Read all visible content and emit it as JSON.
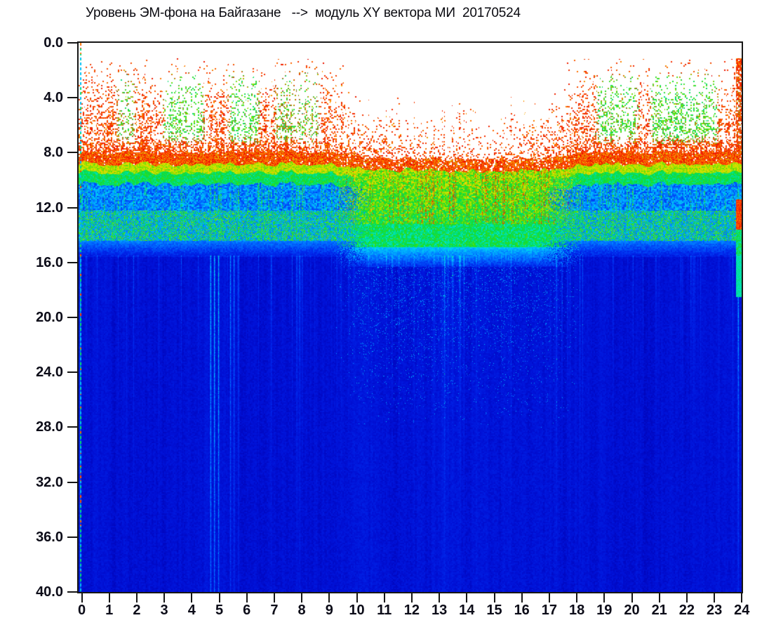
{
  "window": {
    "background": "#ffffff"
  },
  "chart": {
    "title": "Уровень ЭМ-фона на Байгазане   -->  модуль XY вектора МИ  20170524"
  },
  "chart_data": {
    "type": "heatmap",
    "title": "Уровень ЭМ-фона на Байгазане   -->  модуль XY вектора МИ  20170524",
    "station": "Байгазан",
    "date": "20170524",
    "x": {
      "range": [
        0,
        24
      ],
      "ticks": [
        "0",
        "1",
        "2",
        "3",
        "4",
        "5",
        "6",
        "7",
        "8",
        "9",
        "10",
        "11",
        "12",
        "13",
        "14",
        "15",
        "16",
        "17",
        "18",
        "19",
        "20",
        "21",
        "22",
        "23",
        "24"
      ]
    },
    "y": {
      "range_top_to_bottom": [
        0,
        40
      ],
      "tick_step": 4,
      "ticks": [
        "0.0",
        "4.0",
        "8.0",
        "12.0",
        "16.0",
        "20.0",
        "24.0",
        "28.0",
        "32.0",
        "36.0",
        "40.0"
      ]
    },
    "legend": "none",
    "grid": "off",
    "colormap": {
      "white_threshold": 0.048,
      "stops": [
        [
          0.05,
          0,
          0,
          178
        ],
        [
          0.12,
          0,
          18,
          216
        ],
        [
          0.2,
          0,
          44,
          238
        ],
        [
          0.3,
          0,
          104,
          255
        ],
        [
          0.4,
          0,
          174,
          255
        ],
        [
          0.48,
          0,
          226,
          233
        ],
        [
          0.55,
          0,
          224,
          120
        ],
        [
          0.61,
          24,
          220,
          40
        ],
        [
          0.68,
          132,
          226,
          0
        ],
        [
          0.75,
          232,
          226,
          0
        ],
        [
          0.82,
          255,
          148,
          0
        ],
        [
          0.88,
          255,
          58,
          0
        ],
        [
          1.0,
          222,
          0,
          0
        ]
      ]
    },
    "structure": {
      "comment": "EM-background daily spectrogram: strong low-frequency activity (red speckle with green cores) 0..8 units during local night/morning (0-9.5h) and evening (17.5-24h); quiet white gap 10-17h; dense red boundary band near 8; yellow-green field 9-14.5 in quiet hours; cyan mottle and green-speckle band 12-14.5 in active hours; deep blue above 15.5 with vertical cyan streaks",
      "quiet_ramp_hours": [
        9.1,
        10.7,
        16.6,
        18.4
      ],
      "band": {
        "dense_top": 7.95,
        "dense_height": 0.75,
        "quiet_sag": 0.5
      },
      "green_windows": [
        [
          1.3,
          2.15,
          0.8
        ],
        [
          2.95,
          4.65,
          1.0
        ],
        [
          5.35,
          6.65,
          1.0
        ],
        [
          7.05,
          8.8,
          0.75
        ],
        [
          18.65,
          20.35,
          0.95
        ],
        [
          20.6,
          23.25,
          1.0
        ],
        [
          23.78,
          24.0,
          0.9
        ]
      ],
      "quiet_top_clusters": [
        [
          10.95,
          0.5,
          0.3
        ],
        [
          16.95,
          0.55,
          0.5
        ],
        [
          12.45,
          0.3,
          0.12
        ],
        [
          14.2,
          0.3,
          0.08
        ],
        [
          15.5,
          0.3,
          0.1
        ]
      ],
      "streaks": [
        [
          0.07,
          0.9,
          40
        ],
        [
          4.78,
          0.9,
          40
        ],
        [
          4.92,
          1.0,
          40
        ],
        [
          5.07,
          0.95,
          40
        ],
        [
          5.5,
          0.7,
          24
        ],
        [
          5.63,
          0.6,
          20
        ],
        [
          5.79,
          0.55,
          18
        ],
        [
          6.98,
          0.45,
          10
        ],
        [
          7.9,
          0.5,
          12
        ],
        [
          8.1,
          0.4,
          10
        ],
        [
          9.35,
          0.3,
          7
        ],
        [
          10.5,
          0.25,
          6
        ],
        [
          11.35,
          0.35,
          8
        ],
        [
          11.6,
          0.3,
          7
        ],
        [
          12.15,
          0.3,
          7
        ],
        [
          13.25,
          0.6,
          10
        ],
        [
          13.55,
          0.35,
          8
        ],
        [
          13.95,
          0.45,
          9
        ],
        [
          14.4,
          0.25,
          6
        ],
        [
          17.3,
          0.5,
          9
        ],
        [
          17.5,
          0.45,
          8
        ],
        [
          17.7,
          0.35,
          7
        ],
        [
          19.35,
          0.4,
          8
        ],
        [
          20.9,
          0.3,
          6
        ],
        [
          21.8,
          0.3,
          6
        ],
        [
          23.88,
          1.0,
          14
        ]
      ],
      "right_edge_anomaly": {
        "start_hour": 23.8,
        "red_v": [
          11.4,
          13.6
        ],
        "green_v": [
          13.6,
          18.5
        ]
      },
      "left_marker_dash": true
    }
  }
}
